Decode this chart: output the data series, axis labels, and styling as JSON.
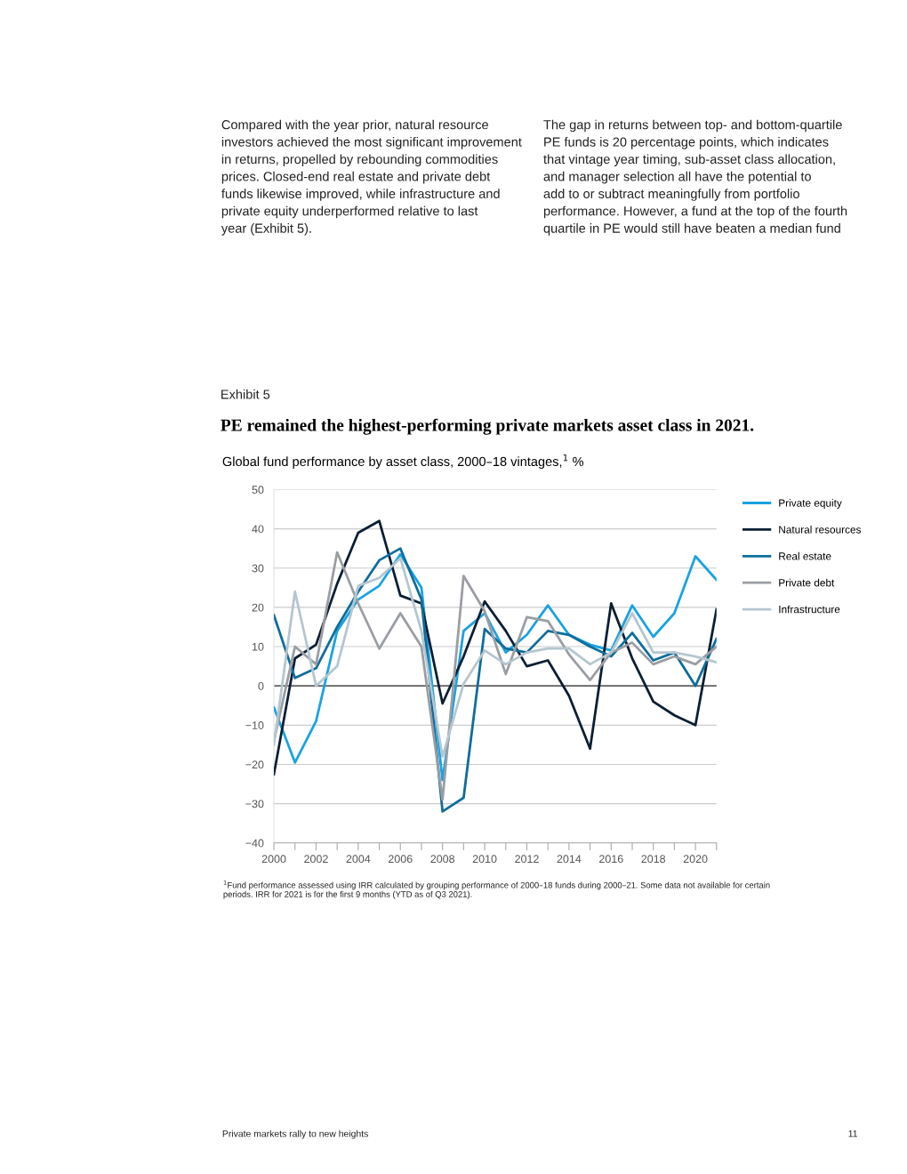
{
  "chart_data": {
    "type": "line",
    "title": "PE remained the highest-performing private markets asset class in 2021.",
    "subtitle": "Global fund performance by asset class, 2000–18 vintages,$^{1}$ %",
    "annotations": [
      "Compared with the year prior, natural resource\ninvestors achieved the most significant improvement\nin returns, propelled by rebounding commodities\nprices. Closed-end real estate and private debt\nfunds likewise improved, while infrastructure and\nprivate equity underperformed relative to last\nyear (Exhibit 5).",
      "The gap in returns between top- and bottom-quartile\nPE funds is 20 percentage points, which indicates\nthat vintage year timing, sub-asset class allocation,\nand manager selection all have the potential to\nadd to or subtract meaningfully from portfolio\nperformance. However, a fund at the top of the fourth\nquartile in PE would still have beaten a median fund",
      "Exhibit 5",
      "$^{1}$Fund performance assessed using IRR calculated by grouping performance of 2000–18 funds during 2000–21. Some data not available for certain\nperiods. IRR for 2021 is for the first 9 months (YTD as of Q3 2021).",
      "Private markets rally to new heights",
      "11"
    ],
    "x": [
      2000,
      2001,
      2002,
      2003,
      2004,
      2005,
      2006,
      2007,
      2008,
      2009,
      2010,
      2011,
      2012,
      2013,
      2014,
      2015,
      2016,
      2017,
      2018,
      2019,
      2020,
      2021
    ],
    "series": [
      {
        "name": "Private equity",
        "color": "#1aa3e0",
        "values": [
          -5.5,
          -19.5,
          -9,
          14,
          22,
          25.5,
          33.5,
          25,
          -24,
          14,
          18.5,
          8.5,
          13,
          20.5,
          13,
          10.5,
          9,
          20.5,
          12.5,
          18.5,
          33,
          27
        ]
      },
      {
        "name": "Natural resources",
        "color": "#0b1f33",
        "values": [
          -22.5,
          7,
          10.5,
          26,
          39,
          42,
          23,
          21,
          -4.5,
          7.5,
          21.5,
          14,
          5,
          6.5,
          -2.5,
          -16,
          21,
          7,
          -4,
          -7.5,
          -10,
          19.5
        ]
      },
      {
        "name": "Real estate",
        "color": "#0f6d9b",
        "values": [
          18,
          2,
          4.5,
          15,
          24,
          32,
          35,
          22,
          -32,
          -28.5,
          14.5,
          9.5,
          8.5,
          14,
          13,
          10,
          7.5,
          13.5,
          6.5,
          8.5,
          0,
          12
        ]
      },
      {
        "name": "Private debt",
        "color": "#9a9ea3",
        "values": [
          -14,
          10,
          5.5,
          34,
          21,
          9.5,
          18.5,
          10,
          -29,
          28,
          19,
          3,
          17.5,
          16.5,
          8,
          1.5,
          8.5,
          11,
          5.5,
          7.5,
          5.5,
          10
        ]
      },
      {
        "name": "Infrastructure",
        "color": "#b5c6d0",
        "values": [
          -15,
          24,
          0,
          5,
          25.5,
          27.5,
          32.5,
          14,
          -18,
          0.5,
          9,
          5.5,
          8.5,
          9.5,
          9.5,
          5.5,
          8.5,
          18.5,
          8.5,
          8.5,
          7.5,
          6
        ]
      }
    ],
    "xlim": [
      2000,
      2021
    ],
    "xticks": [
      2000,
      {
        "value": 2001,
        "label": null
      },
      2002,
      {
        "value": 2003,
        "label": null
      },
      2004,
      {
        "value": 2005,
        "label": null
      },
      2006,
      {
        "value": 2007,
        "label": null
      },
      2008,
      {
        "value": 2009,
        "label": null
      },
      2010,
      {
        "value": 2011,
        "label": null
      },
      2012,
      {
        "value": 2013,
        "label": null
      },
      2014,
      {
        "value": 2015,
        "label": null
      },
      2016,
      {
        "value": 2017,
        "label": null
      },
      2018,
      {
        "value": 2019,
        "label": null
      },
      2020,
      {
        "value": 2021,
        "label": null
      }
    ],
    "ylim": [
      -40,
      50
    ],
    "yticks": [
      -40,
      -30,
      -20,
      -10,
      0,
      10,
      20,
      30,
      40,
      50
    ],
    "ref_lines": [
      {
        "axis": "y",
        "value": 0,
        "color": "#333333"
      }
    ],
    "grid": "y",
    "legend": "right",
    "line_style": "solid",
    "marker": "none"
  }
}
